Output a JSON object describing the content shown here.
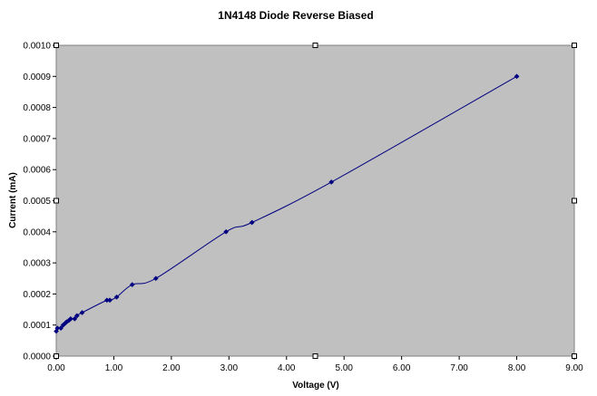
{
  "chart_data": {
    "type": "scatter",
    "title": "1N4148 Diode Reverse Biased",
    "xlabel": "Voltage (V)",
    "ylabel": "Current (mA)",
    "xlim": [
      0,
      9
    ],
    "ylim": [
      0,
      0.001
    ],
    "x_ticks": [
      "0.00",
      "1.00",
      "2.00",
      "3.00",
      "4.00",
      "5.00",
      "6.00",
      "7.00",
      "8.00",
      "9.00"
    ],
    "y_ticks": [
      "0.0000",
      "0.0001",
      "0.0002",
      "0.0003",
      "0.0004",
      "0.0005",
      "0.0006",
      "0.0007",
      "0.0008",
      "0.0009",
      "0.0010"
    ],
    "grid": false,
    "legend": "none",
    "plot_background": "#c0c0c0",
    "series_color": "#000080",
    "series": [
      {
        "line": "smooth",
        "marker": "diamond",
        "points": [
          [
            0.0,
            8e-05
          ],
          [
            0.02,
            9e-05
          ],
          [
            0.08,
            9e-05
          ],
          [
            0.12,
            0.0001
          ],
          [
            0.15,
            0.000105
          ],
          [
            0.18,
            0.00011
          ],
          [
            0.22,
            0.000115
          ],
          [
            0.25,
            0.00012
          ],
          [
            0.32,
            0.00012
          ],
          [
            0.36,
            0.00013
          ],
          [
            0.45,
            0.00014
          ],
          [
            0.88,
            0.00018
          ],
          [
            0.93,
            0.00018
          ],
          [
            1.05,
            0.00019
          ],
          [
            1.32,
            0.00023
          ],
          [
            1.73,
            0.00025
          ],
          [
            2.95,
            0.0004
          ],
          [
            3.4,
            0.00043
          ],
          [
            4.78,
            0.00056
          ],
          [
            8.0,
            0.0009
          ]
        ]
      }
    ]
  }
}
